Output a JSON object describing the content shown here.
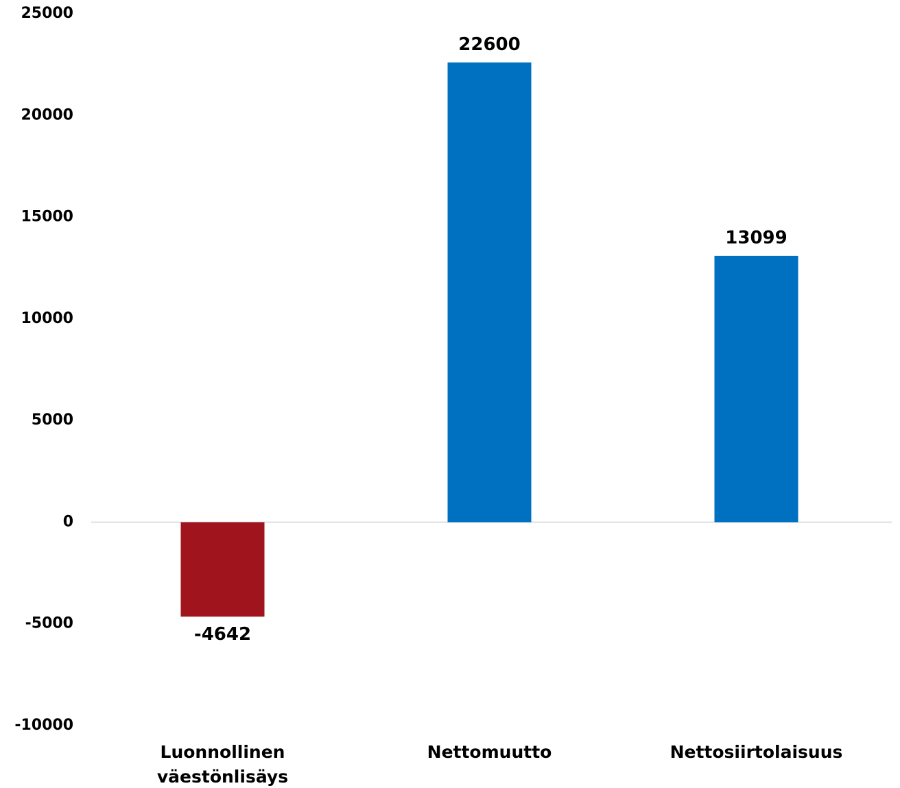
{
  "chart_data": {
    "type": "bar",
    "categories": [
      [
        "Luonnollinen",
        "väestönlisäys"
      ],
      [
        "Nettomuutto"
      ],
      [
        "Nettosiirtolaisuus"
      ]
    ],
    "values": [
      -4642,
      22600,
      13099
    ],
    "data_labels": [
      "-4642",
      "22600",
      "13099"
    ],
    "colors": [
      "#a0141e",
      "#0070c0",
      "#0070c0"
    ],
    "ylim": [
      -10000,
      25000
    ],
    "yticks": [
      25000,
      20000,
      15000,
      10000,
      5000,
      0,
      -5000,
      -10000
    ],
    "ytick_labels": [
      "25000",
      "20000",
      "15000",
      "10000",
      "5000",
      "0",
      "-5000",
      "-10000"
    ],
    "grid": false,
    "zero_line_color": "#d9d9d9",
    "title": "",
    "xlabel": "",
    "ylabel": ""
  }
}
